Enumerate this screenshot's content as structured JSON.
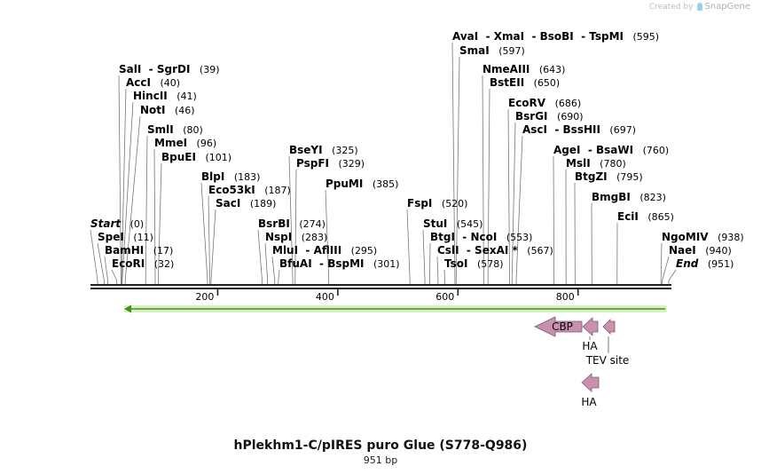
{
  "credit": {
    "text": "Created by",
    "brand": "SnapGene",
    "icon": "snapgene-logo-icon"
  },
  "title": "hPlekhm1-C/pIRES puro Glue (S778-Q986)",
  "subtitle": "951 bp",
  "sequence_length": 951,
  "colors": {
    "feature": "#c990b0",
    "feature_border": "#7d5a6c",
    "orf_line": "#4a8f1a",
    "orf_glow": "#c8eeb0",
    "backbone": "#222222"
  },
  "ticks": [
    {
      "value": 200,
      "label": "200"
    },
    {
      "value": 400,
      "label": "400"
    },
    {
      "value": 600,
      "label": "600"
    },
    {
      "value": 800,
      "label": "800"
    }
  ],
  "sites": [
    {
      "name": "SalI",
      "name2": "SgrDI",
      "pos": "(39)",
      "bp": 39
    },
    {
      "name": "AccI",
      "pos": "(40)",
      "bp": 40
    },
    {
      "name": "HincII",
      "pos": "(41)",
      "bp": 41
    },
    {
      "name": "NotI",
      "pos": "(46)",
      "bp": 46
    },
    {
      "name": "SmlI",
      "pos": "(80)",
      "bp": 80
    },
    {
      "name": "MmeI",
      "pos": "(96)",
      "bp": 96
    },
    {
      "name": "BpuEI",
      "pos": "(101)",
      "bp": 101
    },
    {
      "name": "Start",
      "pos": "(0)",
      "bp": 0,
      "italic": true
    },
    {
      "name": "SpeI",
      "pos": "(11)",
      "bp": 11
    },
    {
      "name": "BamHI",
      "pos": "(17)",
      "bp": 17
    },
    {
      "name": "EcoRI",
      "pos": "(32)",
      "bp": 32
    },
    {
      "name": "BlpI",
      "pos": "(183)",
      "bp": 183
    },
    {
      "name": "Eco53kI",
      "pos": "(187)",
      "bp": 187
    },
    {
      "name": "SacI",
      "pos": "(189)",
      "bp": 189
    },
    {
      "name": "BseYI",
      "pos": "(325)",
      "bp": 325
    },
    {
      "name": "PspFI",
      "pos": "(329)",
      "bp": 329
    },
    {
      "name": "PpuMI",
      "pos": "(385)",
      "bp": 385
    },
    {
      "name": "BsrBI",
      "pos": "(274)",
      "bp": 274
    },
    {
      "name": "NspI",
      "pos": "(283)",
      "bp": 283
    },
    {
      "name": "MluI",
      "name2": "AflIII",
      "pos": "(295)",
      "bp": 295
    },
    {
      "name": "BfuAI",
      "name2": "BspMI",
      "pos": "(301)",
      "bp": 301
    },
    {
      "name": "AvaI",
      "name2": "XmaI",
      "name3": "BsoBI",
      "name4": "TspMI",
      "pos": "(595)",
      "bp": 595
    },
    {
      "name": "SmaI",
      "pos": "(597)",
      "bp": 597
    },
    {
      "name": "NmeAIII",
      "pos": "(643)",
      "bp": 643
    },
    {
      "name": "BstEII",
      "pos": "(650)",
      "bp": 650
    },
    {
      "name": "EcoRV",
      "pos": "(686)",
      "bp": 686
    },
    {
      "name": "BsrGI",
      "pos": "(690)",
      "bp": 690
    },
    {
      "name": "AscI",
      "name2": "BssHII",
      "pos": "(697)",
      "bp": 697
    },
    {
      "name": "AgeI",
      "name2": "BsaWI",
      "pos": "(760)",
      "bp": 760
    },
    {
      "name": "MslI",
      "pos": "(780)",
      "bp": 780
    },
    {
      "name": "BtgZI",
      "pos": "(795)",
      "bp": 795
    },
    {
      "name": "BmgBI",
      "pos": "(823)",
      "bp": 823
    },
    {
      "name": "EciI",
      "pos": "(865)",
      "bp": 865
    },
    {
      "name": "FspI",
      "pos": "(520)",
      "bp": 520
    },
    {
      "name": "StuI",
      "pos": "(545)",
      "bp": 545
    },
    {
      "name": "BtgI",
      "name2": "NcoI",
      "pos": "(553)",
      "bp": 553
    },
    {
      "name": "CslI",
      "name2": "SexAI *",
      "pos": "(567)",
      "bp": 567
    },
    {
      "name": "TsoI",
      "pos": "(578)",
      "bp": 578
    },
    {
      "name": "NgoMIV",
      "pos": "(938)",
      "bp": 938
    },
    {
      "name": "NaeI",
      "pos": "(940)",
      "bp": 940
    },
    {
      "name": "End",
      "pos": "(951)",
      "bp": 951,
      "italic": true
    }
  ],
  "features": [
    {
      "name": "CBP",
      "direction": "reverse"
    },
    {
      "name": "HA",
      "direction": "reverse"
    },
    {
      "name": "TEV site",
      "direction": "reverse"
    },
    {
      "name": "HA",
      "direction": "reverse"
    }
  ]
}
